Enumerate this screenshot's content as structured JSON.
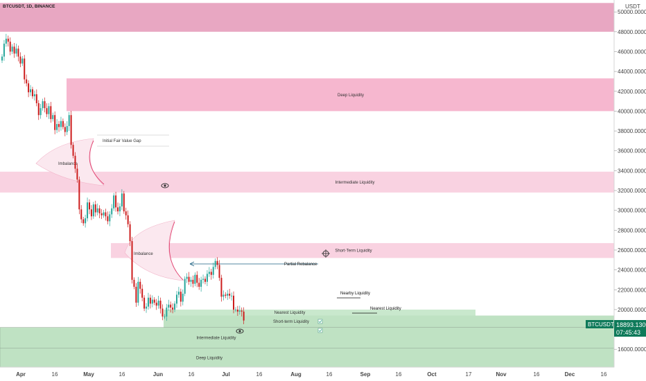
{
  "title": "BTCUSDT, 1D, BINANCE",
  "currency_label": "USDT",
  "price_badge": {
    "symbol": "BTCUSDT",
    "price": "18893.1300",
    "countdown": "07:45:43",
    "color": "#0f7a5a"
  },
  "colors": {
    "up": "#26a69a",
    "down": "#cc1c1c",
    "pink_dark": "#e8a7c2",
    "pink": "#f6b7cf",
    "pink_light": "#f9d2e1",
    "green_light": "#c9e8cd",
    "green_mid": "#bfe2c3"
  },
  "chart_data": {
    "type": "candlestick",
    "ylim": [
      14200,
      51200
    ],
    "y_ticks": [
      "50000.0000",
      "48000.0000",
      "46000.0000",
      "44000.0000",
      "42000.0000",
      "40000.0000",
      "38000.0000",
      "36000.0000",
      "34000.0000",
      "32000.0000",
      "30000.0000",
      "28000.0000",
      "26000.0000",
      "24000.0000",
      "22000.0000",
      "20000.0000",
      "16000.0000"
    ],
    "x_ticks": [
      "Apr",
      "16",
      "May",
      "16",
      "Jun",
      "16",
      "Jul",
      "16",
      "Aug",
      "16",
      "Sep",
      "16",
      "Oct",
      "17",
      "Nov",
      "16",
      "Dec",
      "16"
    ],
    "zones": [
      {
        "label": "",
        "low": 48000,
        "high": 50900,
        "color": "pink_dark"
      },
      {
        "label": "Deep Liquidity",
        "low": 40000,
        "high": 43300,
        "color": "pink"
      },
      {
        "label": "Intermediate Liquidity",
        "low": 31800,
        "high": 33900,
        "color": "pink_light"
      },
      {
        "label": "Short-Term Liquidity",
        "low": 25200,
        "high": 26700,
        "color": "pink_light"
      },
      {
        "label": "Nearest Liquidity",
        "low": 19400,
        "high": 20000,
        "color": "green_light"
      },
      {
        "label": "Short-term Liquidity",
        "low": 18200,
        "high": 19400,
        "color": "green_mid"
      },
      {
        "label": "Intermediate Liquidity",
        "low": 16100,
        "high": 18200,
        "color": "green_mid"
      },
      {
        "label": "Deep Liquidity",
        "low": 14200,
        "high": 16100,
        "color": "green_mid"
      }
    ],
    "annotations": [
      "Initial Fair Value Gap",
      "Imbalance",
      "Imbalance",
      "Partial Rebalance",
      "Nearby Liquidity",
      "Nearest Liquidity"
    ],
    "closes": [
      45500,
      46800,
      47300,
      47000,
      46000,
      46500,
      45800,
      46300,
      45500,
      44800,
      45300,
      43200,
      42800,
      41900,
      42200,
      41500,
      41700,
      40800,
      39600,
      40300,
      41000,
      40300,
      39700,
      40500,
      39200,
      39600,
      38100,
      38700,
      38400,
      39000,
      38400,
      37900,
      38500,
      39600,
      36600,
      35500,
      34200,
      33100,
      30100,
      29100,
      28700,
      29200,
      30800,
      30100,
      29400,
      30600,
      29800,
      30200,
      29700,
      29500,
      29800,
      29400,
      28900,
      29600,
      30200,
      31500,
      30300,
      29900,
      30400,
      31700,
      29900,
      29500,
      28600,
      26900,
      23000,
      22300,
      20700,
      22800,
      22100,
      21200,
      20100,
      20300,
      21200,
      20600,
      21000,
      20700,
      20400,
      20900,
      20100,
      19300,
      19300,
      20200,
      20500,
      20200,
      20000,
      20600,
      21500,
      21800,
      20800,
      21600,
      23100,
      23300,
      22800,
      23000,
      22600,
      23500,
      22700,
      22300,
      23000,
      23100,
      22800,
      23600,
      23800,
      23500,
      24300,
      24900,
      24500,
      23200,
      21300,
      21500,
      21400,
      21600,
      21400,
      21400,
      20000,
      20000,
      19800,
      19900,
      19800,
      18900
    ],
    "candle_up_color": "#26a69a",
    "candle_down_color": "#cc1c1c"
  }
}
